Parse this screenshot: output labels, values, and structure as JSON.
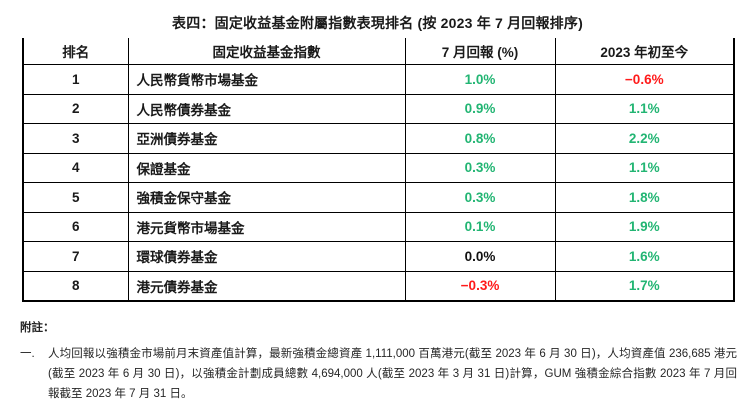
{
  "title": "表四：固定收益基金附屬指數表現排名 (按 2023 年 7 月回報排序)",
  "colors": {
    "positive": "#22b573",
    "negative": "#ff1a1a",
    "neutral": "#111111"
  },
  "table": {
    "headers": [
      "排名",
      "固定收益基金指數",
      "7 月回報 (%)",
      "2023 年初至今"
    ],
    "rows": [
      {
        "rank": "1",
        "fund": "人民幣貨幣市場基金",
        "july": "1.0%",
        "july_color": "positive",
        "ytd": "−0.6%",
        "ytd_color": "negative"
      },
      {
        "rank": "2",
        "fund": "人民幣債券基金",
        "july": "0.9%",
        "july_color": "positive",
        "ytd": "1.1%",
        "ytd_color": "positive"
      },
      {
        "rank": "3",
        "fund": "亞洲債券基金",
        "july": "0.8%",
        "july_color": "positive",
        "ytd": "2.2%",
        "ytd_color": "positive"
      },
      {
        "rank": "4",
        "fund": "保證基金",
        "july": "0.3%",
        "july_color": "positive",
        "ytd": "1.1%",
        "ytd_color": "positive"
      },
      {
        "rank": "5",
        "fund": "強積金保守基金",
        "july": "0.3%",
        "july_color": "positive",
        "ytd": "1.8%",
        "ytd_color": "positive"
      },
      {
        "rank": "6",
        "fund": "港元貨幣市場基金",
        "july": "0.1%",
        "july_color": "positive",
        "ytd": "1.9%",
        "ytd_color": "positive"
      },
      {
        "rank": "7",
        "fund": "環球債券基金",
        "july": "0.0%",
        "july_color": "neutral",
        "ytd": "1.6%",
        "ytd_color": "positive"
      },
      {
        "rank": "8",
        "fund": "港元債券基金",
        "july": "−0.3%",
        "july_color": "negative",
        "ytd": "1.7%",
        "ytd_color": "positive"
      }
    ]
  },
  "footnotes": {
    "heading": "附註：",
    "items": [
      {
        "marker": "一.",
        "text": "人均回報以強積金市場前月末資產值計算，最新強積金總資產 1,111,000 百萬港元(截至 2023 年 6 月 30 日)，人均資產值 236,685 港元(截至 2023 年 6 月 30 日)，以強積金計劃成員總數 4,694,000 人(截至 2023 年 3 月 31 日)計算，GUM 強積金綜合指數 2023 年 7 月回報截至 2023 年 7 月 31 日。"
      }
    ]
  }
}
